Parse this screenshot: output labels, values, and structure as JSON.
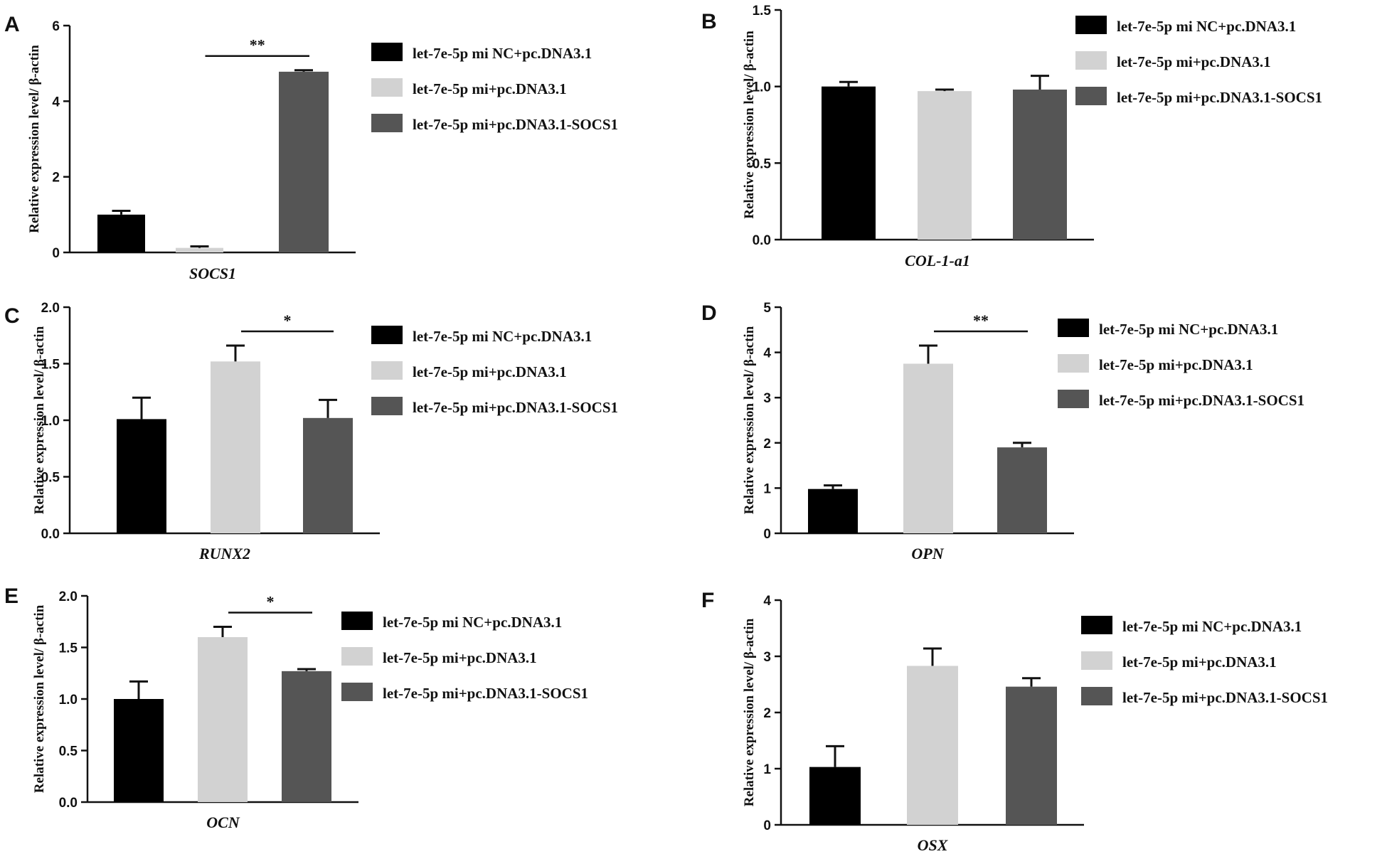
{
  "colors": {
    "series": [
      "#000000",
      "#d2d2d2",
      "#555555"
    ],
    "axis": "#111111"
  },
  "chart_data": [
    {
      "type": "bar",
      "panel": "A",
      "ylabel": "Relative  expression level/ β-actin",
      "category": "SOCS1",
      "ylim": [
        0,
        6
      ],
      "ticks": [
        "0",
        "2",
        "4",
        "6"
      ],
      "legend": [
        "let-7e-5p mi NC+pc.DNA3.1",
        "let-7e-5p mi+pc.DNA3.1",
        "let-7e-5p mi+pc.DNA3.1-SOCS1"
      ],
      "values": [
        1.0,
        0.12,
        4.78
      ],
      "errors": [
        0.1,
        0.04,
        0.04
      ],
      "significance": {
        "label": "**",
        "from": 1,
        "to": 2
      }
    },
    {
      "type": "bar",
      "panel": "B",
      "ylabel": "Relative  expression level/ β-actin",
      "category": "COL-1-a1",
      "ylim": [
        0,
        1.5
      ],
      "ticks": [
        "0.0",
        "0.5",
        "1.0",
        "1.5"
      ],
      "legend": [
        "let-7e-5p mi NC+pc.DNA3.1",
        "let-7e-5p mi+pc.DNA3.1",
        "let-7e-5p mi+pc.DNA3.1-SOCS1"
      ],
      "values": [
        1.0,
        0.97,
        0.98
      ],
      "errors": [
        0.03,
        0.01,
        0.09
      ],
      "significance": null
    },
    {
      "type": "bar",
      "panel": "C",
      "ylabel": "Relative  expression level/ β-actin",
      "category": "RUNX2",
      "ylim": [
        0,
        2.0
      ],
      "ticks": [
        "0.0",
        "0.5",
        "1.0",
        "1.5",
        "2.0"
      ],
      "legend": [
        "let-7e-5p mi NC+pc.DNA3.1",
        "let-7e-5p mi+pc.DNA3.1",
        "let-7e-5p mi+pc.DNA3.1-SOCS1"
      ],
      "values": [
        1.01,
        1.52,
        1.02
      ],
      "errors": [
        0.19,
        0.14,
        0.16
      ],
      "significance": {
        "label": "*",
        "from": 1,
        "to": 2
      }
    },
    {
      "type": "bar",
      "panel": "D",
      "ylabel": "Relative  expression level/ β-actin",
      "category": "OPN",
      "ylim": [
        0,
        5
      ],
      "ticks": [
        "0",
        "1",
        "2",
        "3",
        "4",
        "5"
      ],
      "legend": [
        "let-7e-5p mi NC+pc.DNA3.1",
        "let-7e-5p mi+pc.DNA3.1",
        "let-7e-5p mi+pc.DNA3.1-SOCS1"
      ],
      "values": [
        0.98,
        3.75,
        1.9
      ],
      "errors": [
        0.08,
        0.4,
        0.1
      ],
      "significance": {
        "label": "**",
        "from": 1,
        "to": 2
      }
    },
    {
      "type": "bar",
      "panel": "E",
      "ylabel": "Relative  expression level/ β-actin",
      "category": "OCN",
      "ylim": [
        0,
        2.0
      ],
      "ticks": [
        "0.0",
        "0.5",
        "1.0",
        "1.5",
        "2.0"
      ],
      "legend": [
        "let-7e-5p mi NC+pc.DNA3.1",
        "let-7e-5p mi+pc.DNA3.1",
        "let-7e-5p mi+pc.DNA3.1-SOCS1"
      ],
      "values": [
        1.0,
        1.6,
        1.27
      ],
      "errors": [
        0.17,
        0.1,
        0.02
      ],
      "significance": {
        "label": "*",
        "from": 1,
        "to": 2
      }
    },
    {
      "type": "bar",
      "panel": "F",
      "ylabel": "Relative  expression level/ β-actin",
      "category": "OSX",
      "ylim": [
        0,
        4
      ],
      "ticks": [
        "0",
        "1",
        "2",
        "3",
        "4"
      ],
      "legend": [
        "let-7e-5p mi NC+pc.DNA3.1",
        "let-7e-5p mi+pc.DNA3.1",
        "let-7e-5p mi+pc.DNA3.1-SOCS1"
      ],
      "values": [
        1.03,
        2.83,
        2.46
      ],
      "errors": [
        0.37,
        0.31,
        0.15
      ],
      "significance": null
    }
  ]
}
